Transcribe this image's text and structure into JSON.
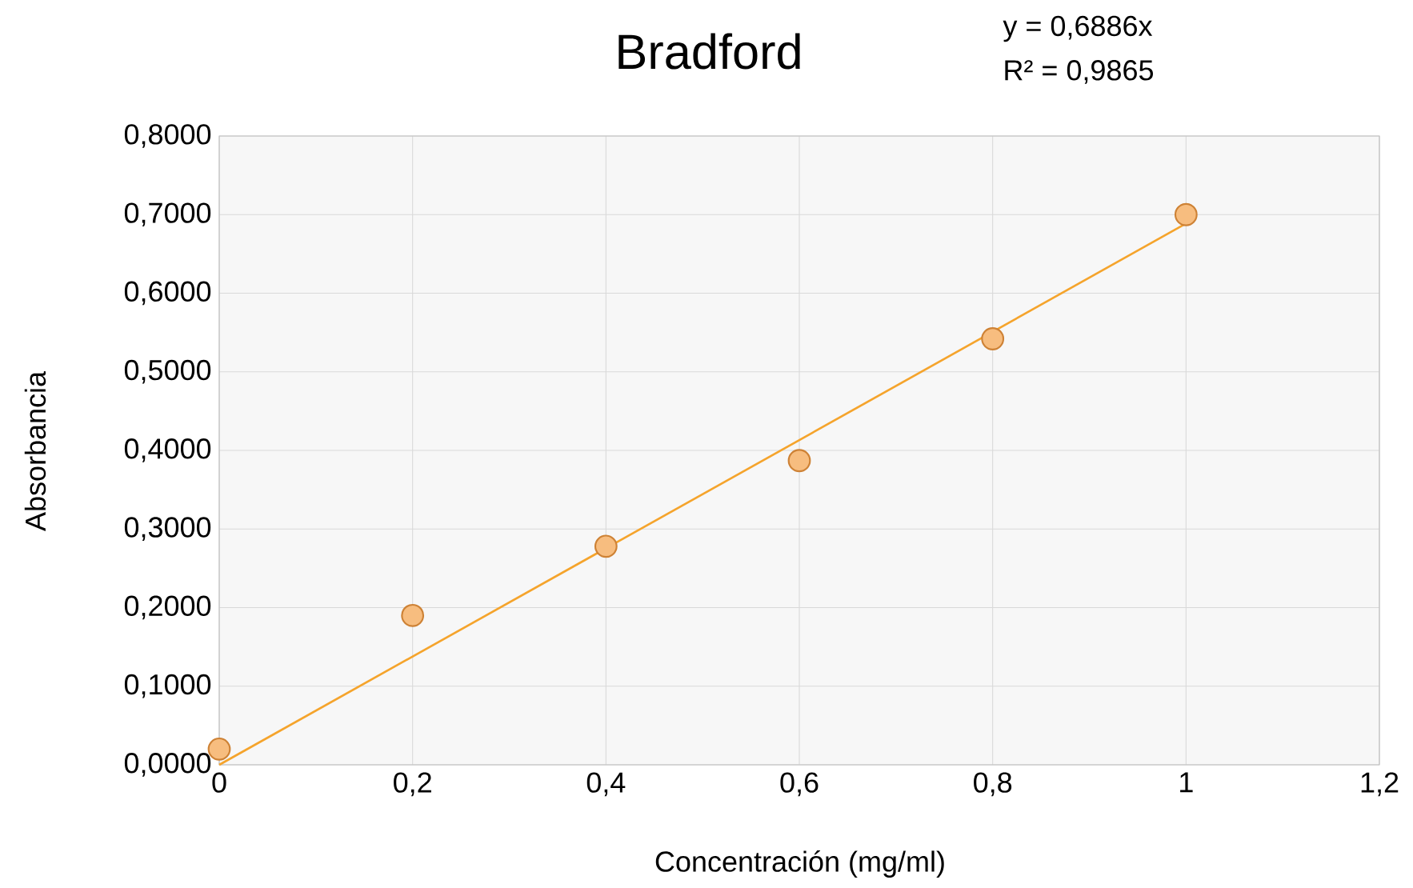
{
  "chart_data": {
    "type": "scatter",
    "title": "Bradford",
    "xlabel": "Concentración (mg/ml)",
    "ylabel": "Absorbancia",
    "annotations": [
      "y = 0,6886x",
      "R² = 0,9865"
    ],
    "xlim": [
      0,
      1.2
    ],
    "ylim": [
      0,
      0.8
    ],
    "xticks": [
      0,
      {
        "value": 0.2,
        "label": "0,2"
      },
      {
        "value": 0.4,
        "label": "0,4"
      },
      {
        "value": 0.6,
        "label": "0,6"
      },
      {
        "value": 0.8,
        "label": "0,8"
      },
      1,
      {
        "value": 1.2,
        "label": "1,2"
      }
    ],
    "yticks": [
      {
        "value": 0,
        "label": "0,0000"
      },
      {
        "value": 0.1,
        "label": "0,1000"
      },
      {
        "value": 0.2,
        "label": "0,2000"
      },
      {
        "value": 0.3,
        "label": "0,3000"
      },
      {
        "value": 0.4,
        "label": "0,4000"
      },
      {
        "value": 0.5,
        "label": "0,5000"
      },
      {
        "value": 0.6,
        "label": "0,6000"
      },
      {
        "value": 0.7,
        "label": "0,7000"
      },
      {
        "value": 0.8,
        "label": "0,8000"
      }
    ],
    "grid": true,
    "series": [
      {
        "marker": "circle",
        "color": "#f7bd7f",
        "x": [
          0,
          0.2,
          0.4,
          0.6,
          0.8,
          1
        ],
        "values": [
          0.02,
          0.19,
          0.278,
          0.387,
          0.542,
          0.7
        ]
      },
      {
        "type": "line",
        "marker": "none",
        "color": "#f5a42c",
        "x": [
          0,
          1
        ],
        "values": [
          0,
          0.6886
        ]
      }
    ]
  }
}
